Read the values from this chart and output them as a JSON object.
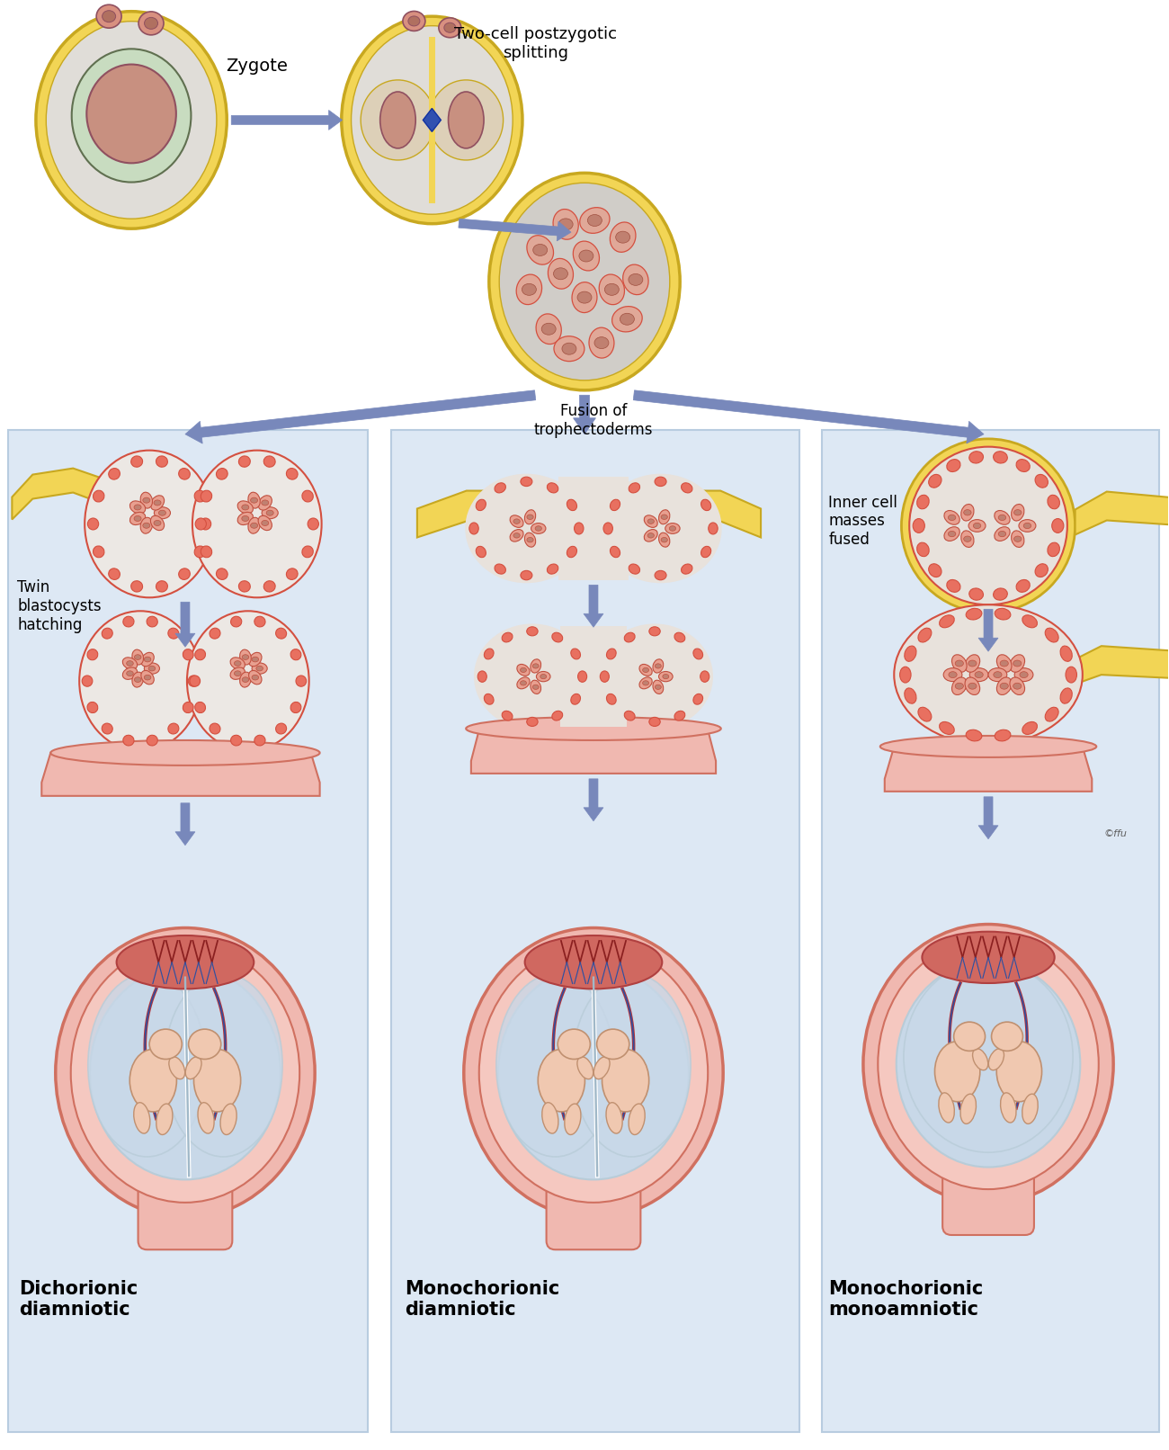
{
  "background_color": "#ffffff",
  "panel_bg": "#dde8f4",
  "arrow_color": "#7080bb",
  "labels": {
    "zygote": "Zygote",
    "two_cell": "Two-cell postzygotic\nsplitting",
    "twin_blasto": "Twin\nblastocysts\nhatching",
    "fusion_tropho": "Fusion of\ntrophectoderms",
    "inner_cell": "Inner cell\nmasses\nfused",
    "dichorionic": "Dichorionic\ndiamniotic",
    "monochorionic_di": "Monochorionic\ndiamniotic",
    "monochorionic_mono": "Monochorionic\nmonoamniotic"
  },
  "colors": {
    "zona": "#f2d555",
    "zona_border": "#c8a820",
    "blastocoel": "#e8e5e0",
    "tropho": "#d45040",
    "tropho_fill": "#e87060",
    "icm_fill": "#e8a090",
    "icm_border": "#c05040",
    "cell_fill": "#e8b0a0",
    "cell_border": "#c05040",
    "nucleus": "#c08070",
    "uterine": "#f0b8b0",
    "uterine_border": "#d07060",
    "amnion": "#b8ccd8",
    "chorion_fill": "#c8d8e8",
    "placenta": "#d06060",
    "fetus_skin": "#f0c8b0",
    "cord_red": "#c03030",
    "cord_blue": "#3050a0",
    "panel_border": "#b8cce0"
  }
}
